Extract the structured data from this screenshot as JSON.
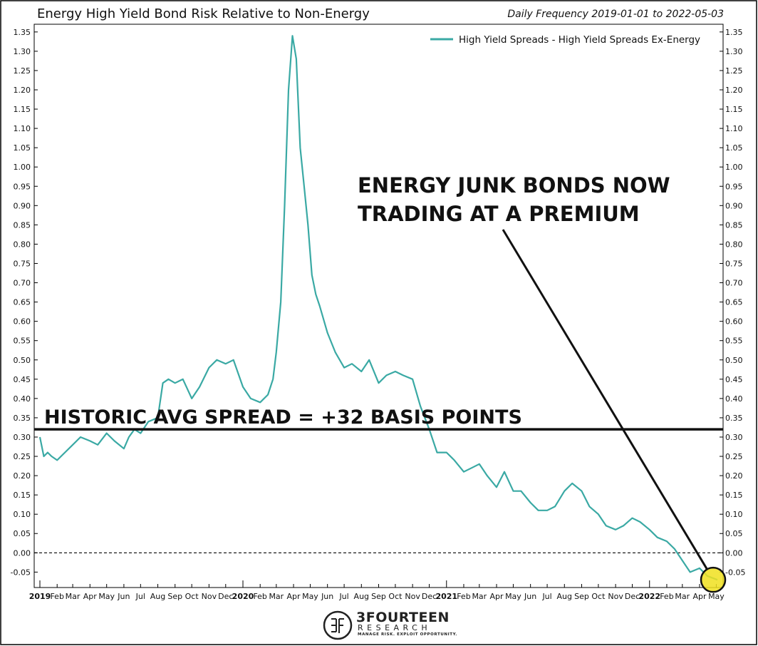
{
  "header": {
    "title": "Energy High Yield Bond Risk Relative to Non-Energy",
    "frequency": "Daily Frequency 2019-01-01 to 2022-05-03"
  },
  "chart_data": {
    "type": "line",
    "title": "Energy High Yield Bond Risk Relative to Non-Energy",
    "subtitle": "Daily Frequency 2019-01-01 to 2022-05-03",
    "xlabel": "",
    "ylabel": "",
    "ylim": [
      -0.09,
      1.37
    ],
    "xlim": [
      "2019-01-01",
      "2022-05-03"
    ],
    "yticks": [
      -0.05,
      0.0,
      0.05,
      0.1,
      0.15,
      0.2,
      0.25,
      0.3,
      0.35,
      0.4,
      0.45,
      0.5,
      0.55,
      0.6,
      0.65,
      0.7,
      0.75,
      0.8,
      0.85,
      0.9,
      0.95,
      1.0,
      1.05,
      1.1,
      1.15,
      1.2,
      1.25,
      1.3,
      1.35
    ],
    "ytick_labels": [
      "-0.05",
      "0.00",
      "0.05",
      "0.10",
      "0.15",
      "0.20",
      "0.25",
      "0.30",
      "0.35",
      "0.40",
      "0.45",
      "0.50",
      "0.55",
      "0.60",
      "0.65",
      "0.70",
      "0.75",
      "0.80",
      "0.85",
      "0.90",
      "0.95",
      "1.00",
      "1.05",
      "1.10",
      "1.15",
      "1.20",
      "1.25",
      "1.30",
      "1.35"
    ],
    "xticks": [
      {
        "date": "2019-01-01",
        "label": "2019",
        "year": true
      },
      {
        "date": "2019-02-01",
        "label": "Feb"
      },
      {
        "date": "2019-03-01",
        "label": "Mar"
      },
      {
        "date": "2019-04-01",
        "label": "Apr"
      },
      {
        "date": "2019-05-01",
        "label": "May"
      },
      {
        "date": "2019-06-01",
        "label": "Jun"
      },
      {
        "date": "2019-07-01",
        "label": "Jul"
      },
      {
        "date": "2019-08-01",
        "label": "Aug"
      },
      {
        "date": "2019-09-01",
        "label": "Sep"
      },
      {
        "date": "2019-10-01",
        "label": "Oct"
      },
      {
        "date": "2019-11-01",
        "label": "Nov"
      },
      {
        "date": "2019-12-01",
        "label": "Dec"
      },
      {
        "date": "2020-01-01",
        "label": "2020",
        "year": true
      },
      {
        "date": "2020-02-01",
        "label": "Feb"
      },
      {
        "date": "2020-03-01",
        "label": "Mar"
      },
      {
        "date": "2020-04-01",
        "label": "Apr"
      },
      {
        "date": "2020-05-01",
        "label": "May"
      },
      {
        "date": "2020-06-01",
        "label": "Jun"
      },
      {
        "date": "2020-07-01",
        "label": "Jul"
      },
      {
        "date": "2020-08-01",
        "label": "Aug"
      },
      {
        "date": "2020-09-01",
        "label": "Sep"
      },
      {
        "date": "2020-10-01",
        "label": "Oct"
      },
      {
        "date": "2020-11-01",
        "label": "Nov"
      },
      {
        "date": "2020-12-01",
        "label": "Dec"
      },
      {
        "date": "2021-01-01",
        "label": "2021",
        "year": true
      },
      {
        "date": "2021-02-01",
        "label": "Feb"
      },
      {
        "date": "2021-03-01",
        "label": "Mar"
      },
      {
        "date": "2021-04-01",
        "label": "Apr"
      },
      {
        "date": "2021-05-01",
        "label": "May"
      },
      {
        "date": "2021-06-01",
        "label": "Jun"
      },
      {
        "date": "2021-07-01",
        "label": "Jul"
      },
      {
        "date": "2021-08-01",
        "label": "Aug"
      },
      {
        "date": "2021-09-01",
        "label": "Sep"
      },
      {
        "date": "2021-10-01",
        "label": "Oct"
      },
      {
        "date": "2021-11-01",
        "label": "Nov"
      },
      {
        "date": "2021-12-01",
        "label": "Dec"
      },
      {
        "date": "2022-01-01",
        "label": "2022",
        "year": true
      },
      {
        "date": "2022-02-01",
        "label": "Feb"
      },
      {
        "date": "2022-03-01",
        "label": "Mar"
      },
      {
        "date": "2022-04-01",
        "label": "Apr"
      },
      {
        "date": "2022-05-01",
        "label": "May"
      }
    ],
    "grid": false,
    "legend": {
      "position": "top-right"
    },
    "series": [
      {
        "name": "High Yield Spreads - High Yield Spreads Ex-Energy",
        "color": "#3aa9a4",
        "x": [
          "2019-01-01",
          "2019-01-08",
          "2019-01-15",
          "2019-01-22",
          "2019-02-01",
          "2019-02-15",
          "2019-03-01",
          "2019-03-15",
          "2019-04-01",
          "2019-04-15",
          "2019-05-01",
          "2019-05-15",
          "2019-06-01",
          "2019-06-10",
          "2019-06-20",
          "2019-07-01",
          "2019-07-15",
          "2019-08-01",
          "2019-08-10",
          "2019-08-20",
          "2019-09-01",
          "2019-09-15",
          "2019-10-01",
          "2019-10-15",
          "2019-11-01",
          "2019-11-15",
          "2019-12-01",
          "2019-12-15",
          "2020-01-01",
          "2020-01-15",
          "2020-02-01",
          "2020-02-15",
          "2020-02-24",
          "2020-03-01",
          "2020-03-09",
          "2020-03-16",
          "2020-03-23",
          "2020-03-30",
          "2020-04-06",
          "2020-04-13",
          "2020-04-20",
          "2020-04-27",
          "2020-05-04",
          "2020-05-11",
          "2020-05-18",
          "2020-06-01",
          "2020-06-15",
          "2020-07-01",
          "2020-07-15",
          "2020-08-01",
          "2020-08-15",
          "2020-09-01",
          "2020-09-15",
          "2020-10-01",
          "2020-10-15",
          "2020-11-01",
          "2020-11-15",
          "2020-12-01",
          "2020-12-15",
          "2021-01-01",
          "2021-01-15",
          "2021-02-01",
          "2021-02-15",
          "2021-03-01",
          "2021-03-15",
          "2021-04-01",
          "2021-04-15",
          "2021-05-01",
          "2021-05-15",
          "2021-06-01",
          "2021-06-15",
          "2021-07-01",
          "2021-07-15",
          "2021-08-01",
          "2021-08-15",
          "2021-09-01",
          "2021-09-15",
          "2021-10-01",
          "2021-10-15",
          "2021-11-01",
          "2021-11-15",
          "2021-12-01",
          "2021-12-15",
          "2022-01-01",
          "2022-01-15",
          "2022-02-01",
          "2022-02-15",
          "2022-03-01",
          "2022-03-15",
          "2022-04-01",
          "2022-04-15",
          "2022-05-03"
        ],
        "values": [
          0.3,
          0.25,
          0.26,
          0.25,
          0.24,
          0.26,
          0.28,
          0.3,
          0.29,
          0.28,
          0.31,
          0.29,
          0.27,
          0.3,
          0.32,
          0.31,
          0.34,
          0.35,
          0.44,
          0.45,
          0.44,
          0.45,
          0.4,
          0.43,
          0.48,
          0.5,
          0.49,
          0.5,
          0.43,
          0.4,
          0.39,
          0.41,
          0.45,
          0.52,
          0.65,
          0.9,
          1.2,
          1.34,
          1.28,
          1.05,
          0.95,
          0.85,
          0.72,
          0.67,
          0.64,
          0.57,
          0.52,
          0.48,
          0.49,
          0.47,
          0.5,
          0.44,
          0.46,
          0.47,
          0.46,
          0.45,
          0.38,
          0.32,
          0.26,
          0.26,
          0.24,
          0.21,
          0.22,
          0.23,
          0.2,
          0.17,
          0.21,
          0.16,
          0.16,
          0.13,
          0.11,
          0.11,
          0.12,
          0.16,
          0.18,
          0.16,
          0.12,
          0.1,
          0.07,
          0.06,
          0.07,
          0.09,
          0.08,
          0.06,
          0.04,
          0.03,
          0.01,
          -0.02,
          -0.05,
          -0.04,
          -0.06,
          -0.07
        ]
      }
    ],
    "annotations": [
      {
        "id": "historic-avg",
        "text": "HISTORIC AVG SPREAD  =  +32 BASIS POINTS",
        "y": 0.32
      },
      {
        "id": "premium-callout",
        "text_line1": "ENERGY JUNK BONDS NOW",
        "text_line2": "TRADING AT A PREMIUM",
        "point": [
          "2022-05-03",
          -0.07
        ]
      }
    ],
    "reference_line": 0.0
  },
  "logo": {
    "brand": "3FOURTEEN",
    "sub": "RESEARCH",
    "tagline": "MANAGE RISK. EXPLOIT OPPORTUNITY."
  }
}
